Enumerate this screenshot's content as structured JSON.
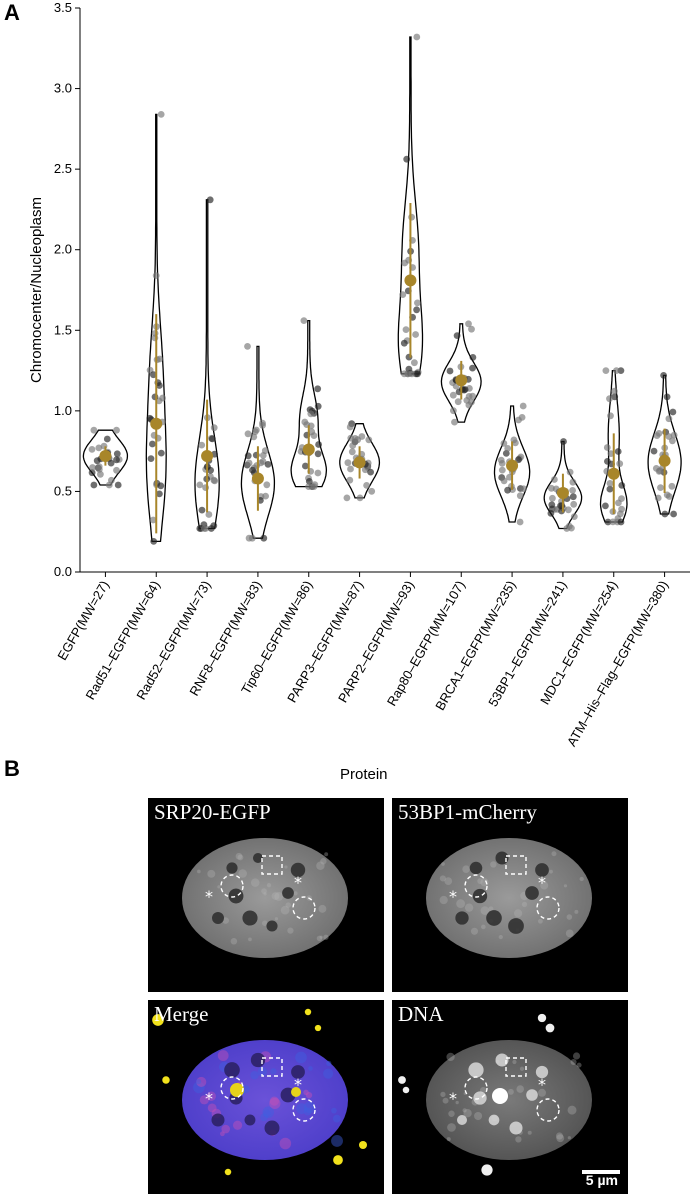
{
  "panel_labels": {
    "a": "A",
    "b": "B"
  },
  "chart_data": {
    "type": "violin",
    "ylabel": "Chromocenter/Nucleoplasm",
    "ylim": [
      0,
      3.5
    ],
    "yticks": [
      "0.0",
      "0.5",
      "1.0",
      "1.5",
      "2.0",
      "2.5",
      "3.0",
      "3.5"
    ],
    "grid": false,
    "colors": {
      "mean_marker": "#a8862a",
      "violin_outline": "#000000",
      "points": "#555555"
    },
    "categories": [
      {
        "label": "EGFP(MW=27)",
        "min": 0.54,
        "max": 0.88,
        "mean": 0.72,
        "sd": 0.06,
        "width": 1.0,
        "modes": [
          [
            0.72,
            0.1,
            1.0
          ]
        ]
      },
      {
        "label": "Rad51–EGFP(MW=64)",
        "min": 0.19,
        "max": 2.84,
        "mean": 0.92,
        "sd": 0.68,
        "width": 0.45,
        "modes": [
          [
            0.65,
            0.35,
            1.0
          ],
          [
            1.3,
            0.3,
            0.5
          ]
        ]
      },
      {
        "label": "Rad52–EGFP(MW=73)",
        "min": 0.27,
        "max": 2.31,
        "mean": 0.72,
        "sd": 0.35,
        "width": 0.55,
        "modes": [
          [
            0.55,
            0.28,
            1.0
          ]
        ]
      },
      {
        "label": "RNF8–EGFP(MW=83)",
        "min": 0.21,
        "max": 1.4,
        "mean": 0.58,
        "sd": 0.2,
        "width": 0.75,
        "modes": [
          [
            0.55,
            0.2,
            1.0
          ]
        ]
      },
      {
        "label": "Tip60–EGFP(MW=86)",
        "min": 0.53,
        "max": 1.56,
        "mean": 0.76,
        "sd": 0.15,
        "width": 0.8,
        "modes": [
          [
            0.62,
            0.12,
            1.0
          ],
          [
            0.95,
            0.15,
            0.5
          ]
        ]
      },
      {
        "label": "PARP3–EGFP(MW=87)",
        "min": 0.46,
        "max": 0.92,
        "mean": 0.68,
        "sd": 0.1,
        "width": 0.9,
        "modes": [
          [
            0.68,
            0.12,
            1.0
          ]
        ]
      },
      {
        "label": "PARP2–EGFP(MW=93)",
        "min": 1.23,
        "max": 3.32,
        "mean": 1.81,
        "sd": 0.48,
        "width": 0.55,
        "modes": [
          [
            1.4,
            0.25,
            1.0
          ],
          [
            2.0,
            0.3,
            0.7
          ]
        ]
      },
      {
        "label": "Rap80–EGFP(MW=107)",
        "min": 0.93,
        "max": 1.54,
        "mean": 1.19,
        "sd": 0.12,
        "width": 0.9,
        "modes": [
          [
            1.18,
            0.12,
            1.0
          ]
        ]
      },
      {
        "label": "BRCA1–EGFP(MW=235)",
        "min": 0.31,
        "max": 1.03,
        "mean": 0.66,
        "sd": 0.15,
        "width": 0.8,
        "modes": [
          [
            0.62,
            0.15,
            1.0
          ]
        ]
      },
      {
        "label": "53BP1–EGFP(MW=241)",
        "min": 0.27,
        "max": 0.81,
        "mean": 0.49,
        "sd": 0.12,
        "width": 0.85,
        "modes": [
          [
            0.46,
            0.1,
            1.0
          ]
        ]
      },
      {
        "label": "MDC1–EGFP(MW=254)",
        "min": 0.31,
        "max": 1.25,
        "mean": 0.61,
        "sd": 0.25,
        "width": 0.6,
        "modes": [
          [
            0.42,
            0.12,
            1.0
          ],
          [
            0.85,
            0.2,
            0.4
          ]
        ]
      },
      {
        "label": "ATM–His–Flag–EGFP(MW=380)",
        "min": 0.36,
        "max": 1.22,
        "mean": 0.69,
        "sd": 0.2,
        "width": 0.75,
        "modes": [
          [
            0.68,
            0.18,
            1.0
          ]
        ]
      }
    ]
  },
  "micrographs": {
    "title": "Protein",
    "tiles": [
      {
        "label": "SRP20-EGFP",
        "mode": "gray"
      },
      {
        "label": "53BP1-mCherry",
        "mode": "gray"
      },
      {
        "label": "Merge",
        "mode": "merge"
      },
      {
        "label": "DNA",
        "mode": "dna"
      }
    ],
    "scale_bar": "5 µm"
  }
}
